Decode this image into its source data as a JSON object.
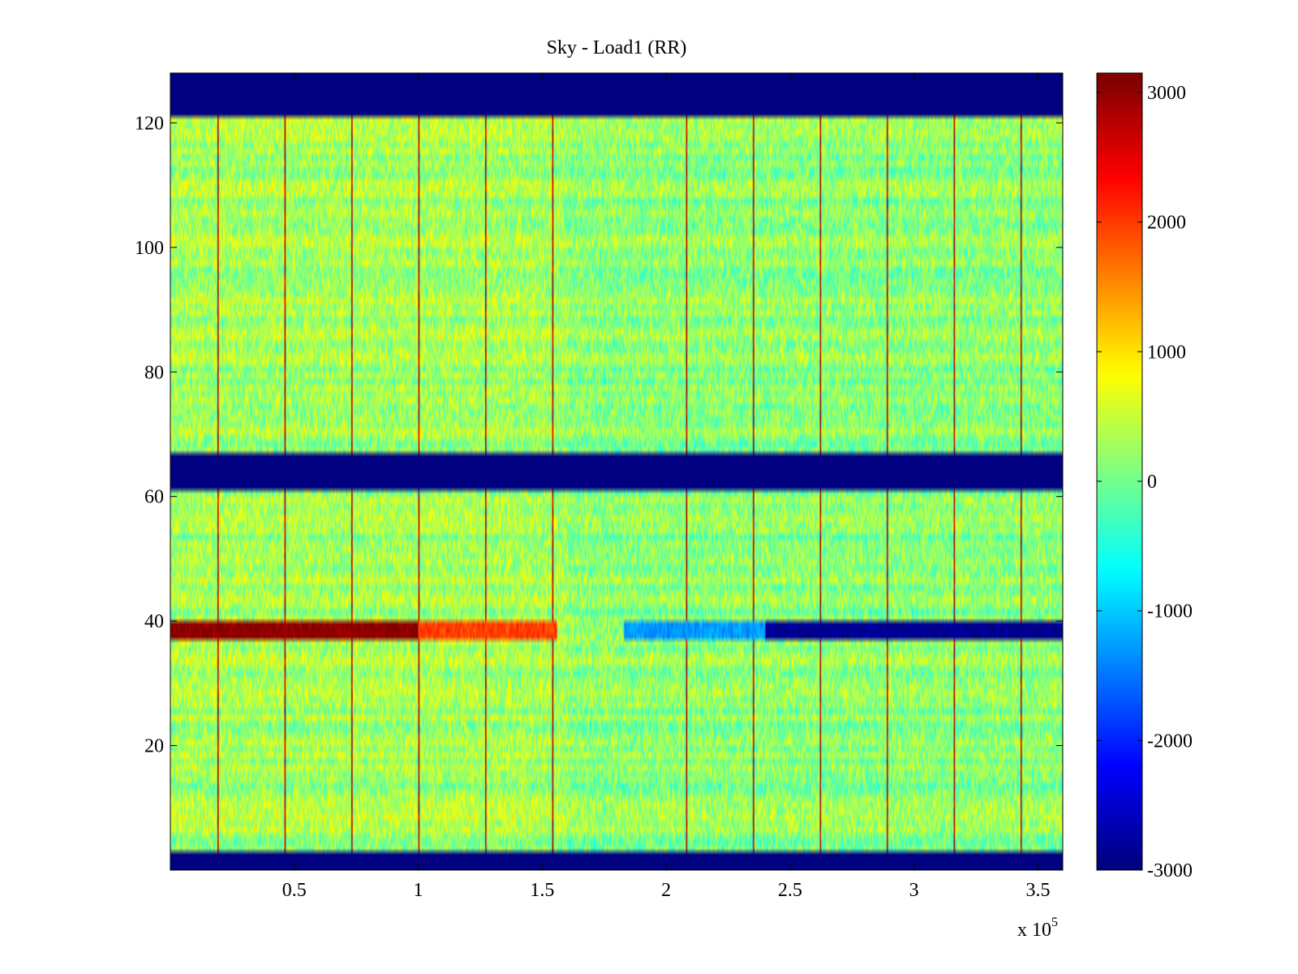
{
  "chart_data": {
    "type": "heatmap",
    "title": "Sky - Load1 (RR)",
    "xlabel": "",
    "ylabel": "",
    "x_exponent_label": "x 10",
    "x_exponent_power": "5",
    "xlim": [
      0,
      3.6
    ],
    "ylim": [
      0,
      128
    ],
    "xticks": [
      0.5,
      1,
      1.5,
      2,
      2.5,
      3,
      3.5
    ],
    "xtick_labels": [
      "0.5",
      "1",
      "1.5",
      "2",
      "2.5",
      "3",
      "3.5"
    ],
    "yticks": [
      20,
      40,
      60,
      80,
      100,
      120
    ],
    "ytick_labels": [
      "20",
      "40",
      "60",
      "80",
      "100",
      "120"
    ],
    "colormap": "jet",
    "clim": [
      -3000,
      3150
    ],
    "colorbar_ticks": [
      3000,
      2000,
      1000,
      0,
      -1000,
      -2000,
      -3000
    ],
    "colorbar_tick_labels": [
      "3000",
      "2000",
      "1000",
      "0",
      "-1000",
      "-2000",
      "-3000"
    ],
    "background_value": 150,
    "flagged_value": -3000,
    "flagged_row_bands": [
      [
        0,
        3
      ],
      [
        61,
        67
      ],
      [
        121,
        128
      ]
    ],
    "vertical_stripes_x": [
      0.19,
      0.46,
      0.73,
      1.0,
      1.27,
      1.54,
      2.08,
      2.35,
      2.62,
      2.89,
      3.16,
      3.43
    ],
    "strong_row": {
      "y_range": [
        37.5,
        40
      ],
      "segments": [
        {
          "x_range": [
            0,
            1.0
          ],
          "value": 3100
        },
        {
          "x_range": [
            1.0,
            1.56
          ],
          "value": 2000
        },
        {
          "x_range": [
            1.83,
            2.4
          ],
          "value": -1300
        },
        {
          "x_range": [
            2.4,
            3.6
          ],
          "value": -2900
        }
      ]
    }
  }
}
